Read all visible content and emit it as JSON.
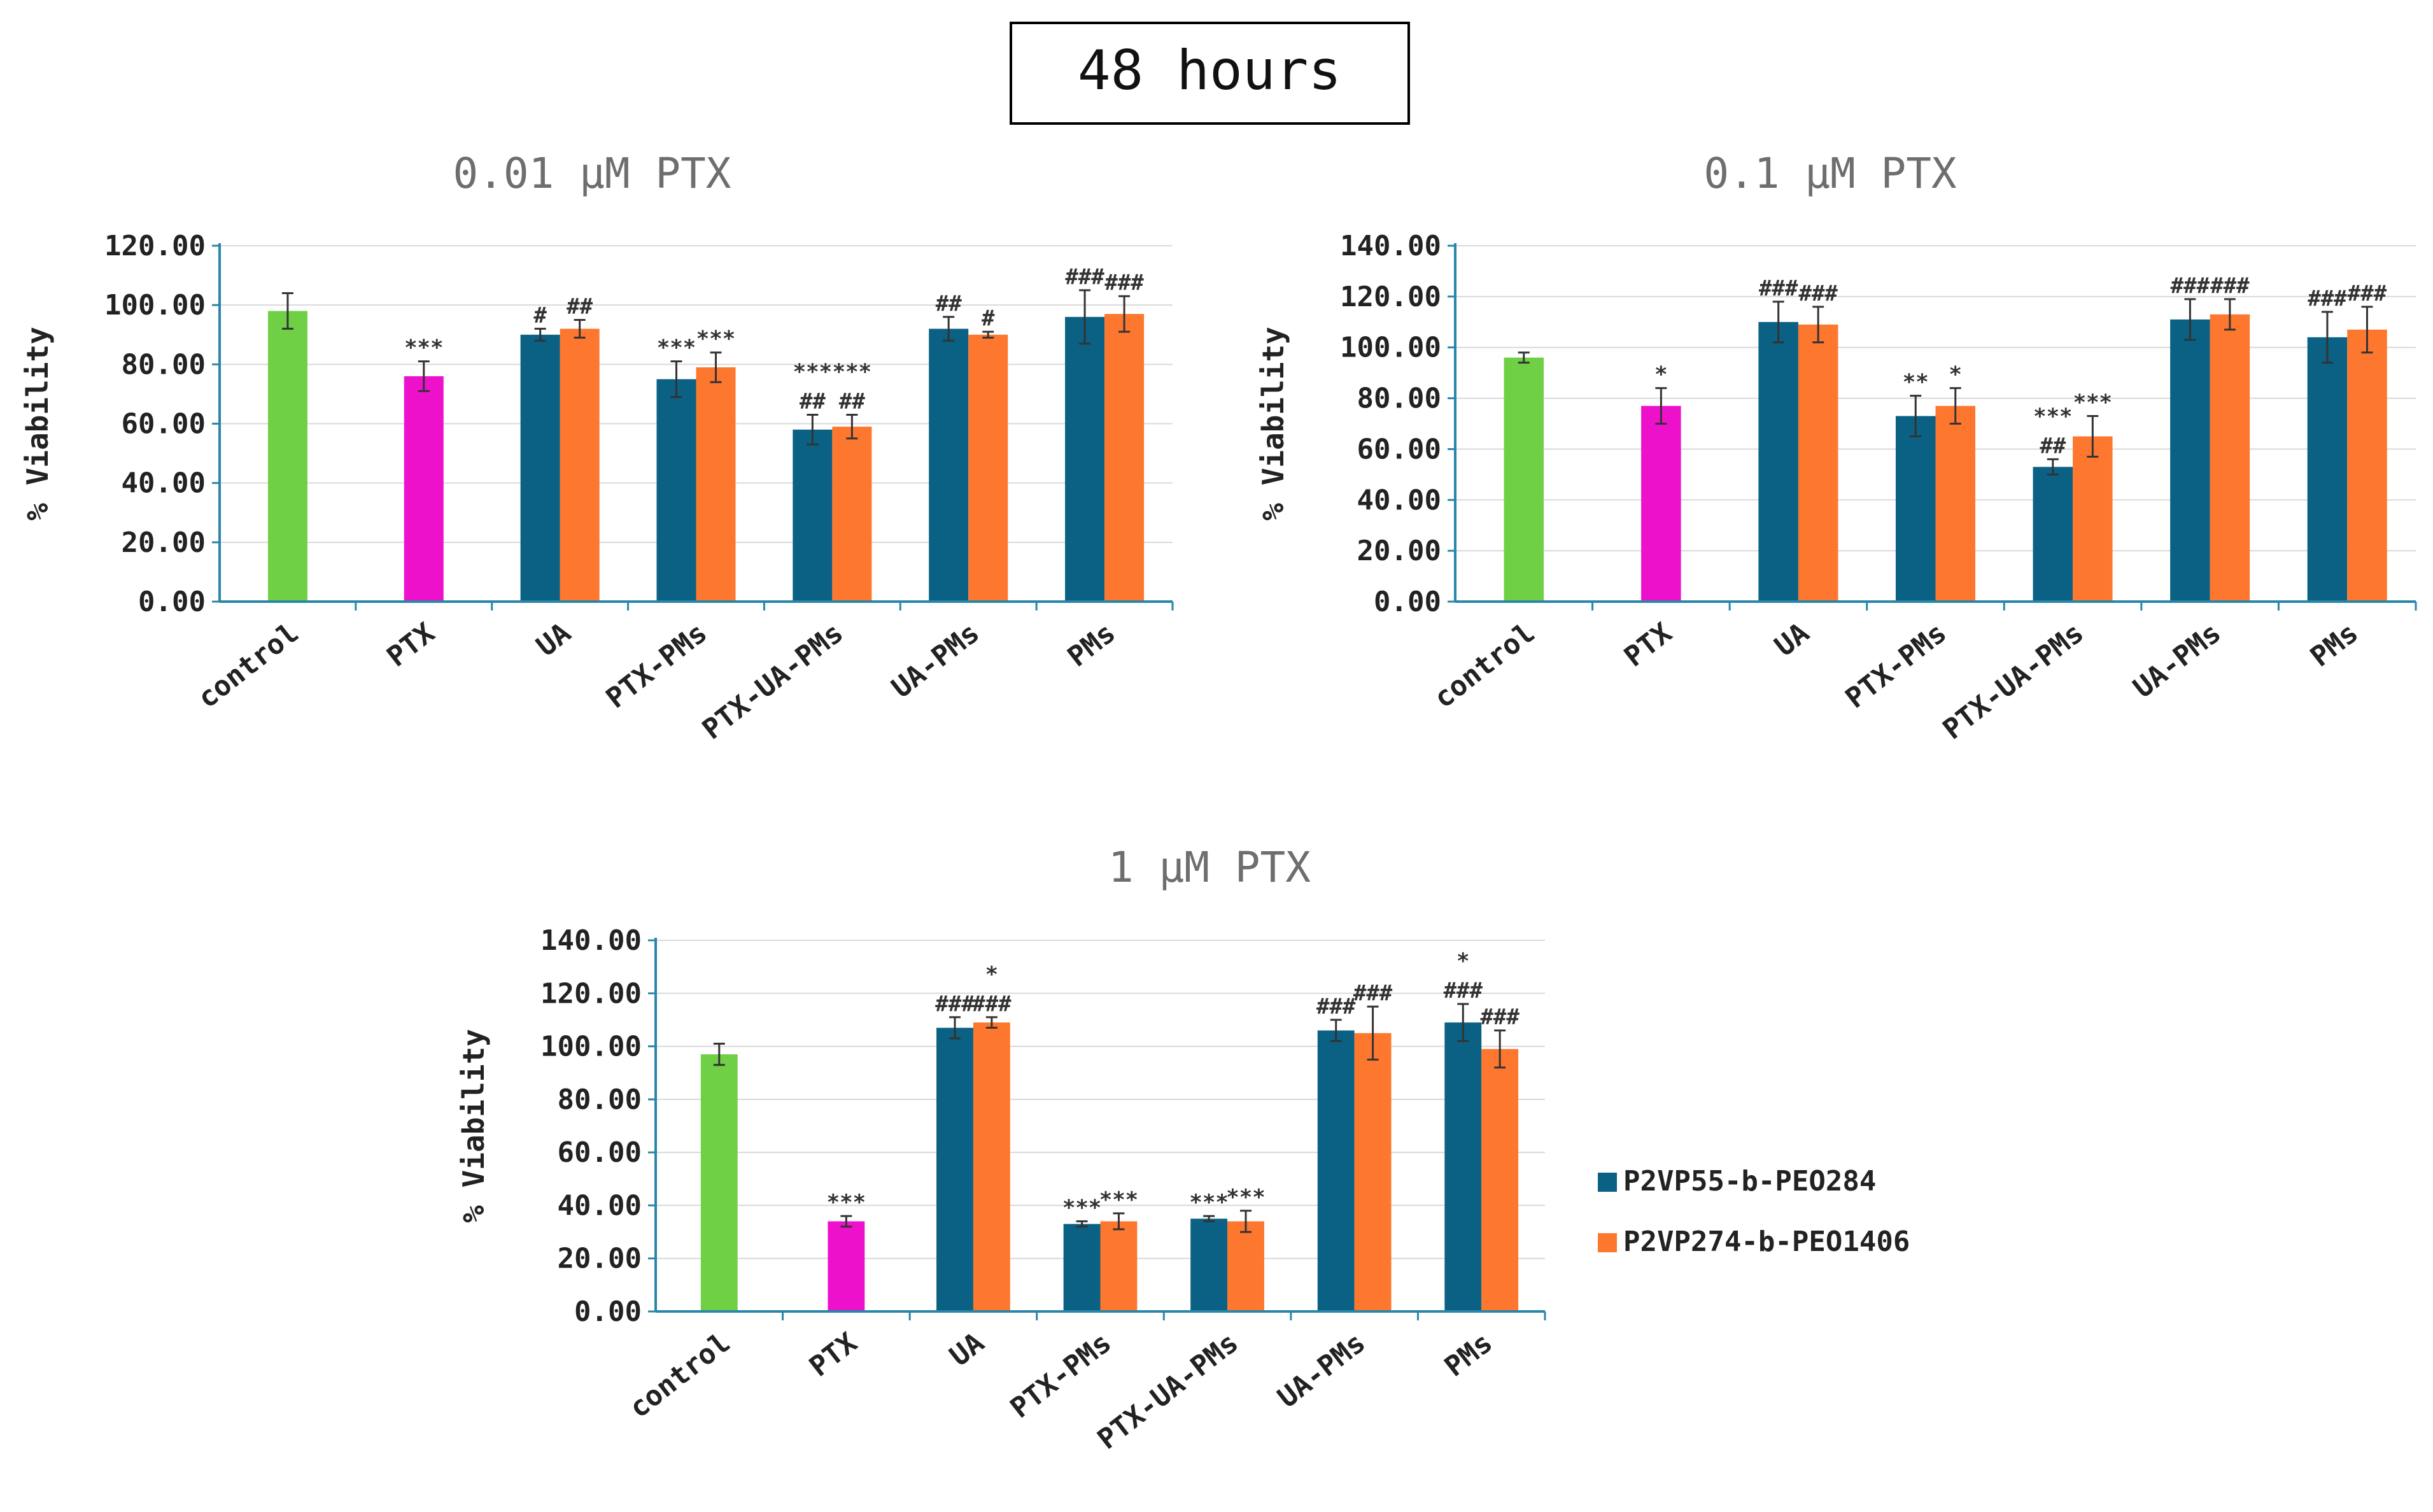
{
  "figure_title": "48 hours",
  "colors": {
    "control": "#6fd046",
    "ptx": "#ee11cc",
    "series1": "#0a6184",
    "series2": "#fd772f",
    "axis": "#2a86a8",
    "grid": "#d9d9d9",
    "text": "#222222",
    "title_gray": "#6e6e6e"
  },
  "legend": {
    "items": [
      {
        "name": "P2VP55-b-PEO284",
        "color": "#0a6184"
      },
      {
        "name": "P2VP274-b-PEO1406",
        "color": "#fd772f"
      }
    ]
  },
  "chart_data": [
    {
      "type": "bar",
      "title": "0.01 μM PTX",
      "ylabel": "% Viability",
      "xlabel": "",
      "ylim": [
        0,
        120
      ],
      "yticks": [
        "0.00",
        "20.00",
        "40.00",
        "60.00",
        "80.00",
        "100.00",
        "120.00"
      ],
      "grid": true,
      "categories": [
        "control",
        "PTX",
        "UA",
        "PTX-PMs",
        "PTX-UA-PMs",
        "UA-PMs",
        "PMs"
      ],
      "single": [
        {
          "category": "control",
          "value": 98,
          "err": 6,
          "kind": "control",
          "annot": []
        },
        {
          "category": "PTX",
          "value": 76,
          "err": 5,
          "kind": "ptx",
          "annot": [
            "***"
          ]
        }
      ],
      "series": [
        {
          "name": "P2VP55-b-PEO284",
          "values": [
            null,
            null,
            90,
            75,
            58,
            92,
            96
          ],
          "errors": [
            null,
            null,
            2,
            6,
            5,
            4,
            9
          ],
          "annotations": [
            [],
            [],
            [
              "#"
            ],
            [
              "***"
            ],
            [
              "***",
              "##"
            ],
            [
              "##"
            ],
            [
              "###"
            ]
          ]
        },
        {
          "name": "P2VP274-b-PEO1406",
          "values": [
            null,
            null,
            92,
            79,
            59,
            90,
            97
          ],
          "errors": [
            null,
            null,
            3,
            5,
            4,
            1,
            6
          ],
          "annotations": [
            [],
            [],
            [
              "##"
            ],
            [
              "***"
            ],
            [
              "***",
              "##"
            ],
            [
              "#"
            ],
            [
              "###"
            ]
          ]
        }
      ]
    },
    {
      "type": "bar",
      "title": "0.1 μM PTX",
      "ylabel": "% Viability",
      "xlabel": "",
      "ylim": [
        0,
        140
      ],
      "yticks": [
        "0.00",
        "20.00",
        "40.00",
        "60.00",
        "80.00",
        "100.00",
        "120.00",
        "140.00"
      ],
      "grid": true,
      "categories": [
        "control",
        "PTX",
        "UA",
        "PTX-PMs",
        "PTX-UA-PMs",
        "UA-PMs",
        "PMs"
      ],
      "single": [
        {
          "category": "control",
          "value": 96,
          "err": 2,
          "kind": "control",
          "annot": []
        },
        {
          "category": "PTX",
          "value": 77,
          "err": 7,
          "kind": "ptx",
          "annot": [
            "*"
          ]
        }
      ],
      "series": [
        {
          "name": "P2VP55-b-PEO284",
          "values": [
            null,
            null,
            110,
            73,
            53,
            111,
            104
          ],
          "errors": [
            null,
            null,
            8,
            8,
            3,
            8,
            10
          ],
          "annotations": [
            [],
            [],
            [
              "###"
            ],
            [
              "**"
            ],
            [
              "***",
              "##"
            ],
            [
              "###"
            ],
            [
              "###"
            ]
          ]
        },
        {
          "name": "P2VP274-b-PEO1406",
          "values": [
            null,
            null,
            109,
            77,
            65,
            113,
            107
          ],
          "errors": [
            null,
            null,
            7,
            7,
            8,
            6,
            9
          ],
          "annotations": [
            [],
            [],
            [
              "###"
            ],
            [
              "*"
            ],
            [
              "***"
            ],
            [
              "###"
            ],
            [
              "###"
            ]
          ]
        }
      ]
    },
    {
      "type": "bar",
      "title": "1 μM PTX",
      "ylabel": "% Viability",
      "xlabel": "",
      "ylim": [
        0,
        140
      ],
      "yticks": [
        "0.00",
        "20.00",
        "40.00",
        "60.00",
        "80.00",
        "100.00",
        "120.00",
        "140.00"
      ],
      "grid": true,
      "categories": [
        "control",
        "PTX",
        "UA",
        "PTX-PMs",
        "PTX-UA-PMs",
        "UA-PMs",
        "PMs"
      ],
      "single": [
        {
          "category": "control",
          "value": 97,
          "err": 4,
          "kind": "control",
          "annot": []
        },
        {
          "category": "PTX",
          "value": 34,
          "err": 2,
          "kind": "ptx",
          "annot": [
            "***"
          ]
        }
      ],
      "series": [
        {
          "name": "P2VP55-b-PEO284",
          "values": [
            null,
            null,
            107,
            33,
            35,
            106,
            109
          ],
          "errors": [
            null,
            null,
            4,
            1,
            1,
            4,
            7
          ],
          "annotations": [
            [],
            [],
            [
              "###"
            ],
            [
              "***"
            ],
            [
              "***"
            ],
            [
              "###"
            ],
            [
              "*",
              "###"
            ]
          ]
        },
        {
          "name": "P2VP274-b-PEO1406",
          "values": [
            null,
            null,
            109,
            34,
            34,
            105,
            99
          ],
          "errors": [
            null,
            null,
            2,
            3,
            4,
            10,
            7
          ],
          "annotations": [
            [],
            [],
            [
              "*",
              "###"
            ],
            [
              "***"
            ],
            [
              "***"
            ],
            [
              "###"
            ],
            [
              "###"
            ]
          ]
        }
      ]
    }
  ]
}
